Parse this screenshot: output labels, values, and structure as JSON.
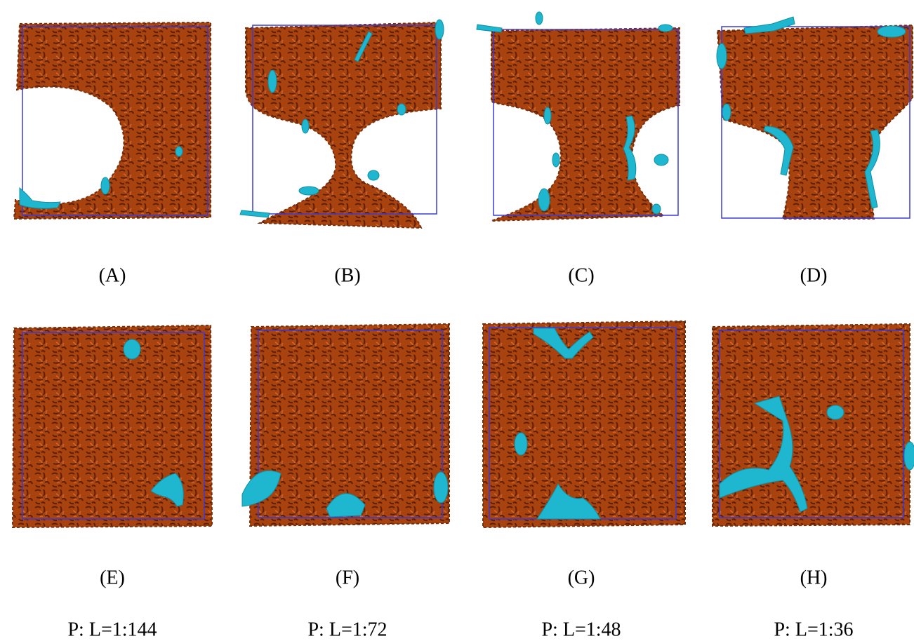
{
  "panels": [
    {
      "label": "(A)"
    },
    {
      "label": "(B)"
    },
    {
      "label": "(C)"
    },
    {
      "label": "(D)"
    },
    {
      "label": "(E)"
    },
    {
      "label": "(F)"
    },
    {
      "label": "(G)"
    },
    {
      "label": "(H)"
    }
  ],
  "ratios": [
    "P: L=1:144",
    "P: L=1:72",
    "P: L=1:48",
    "P: L=1:36"
  ]
}
